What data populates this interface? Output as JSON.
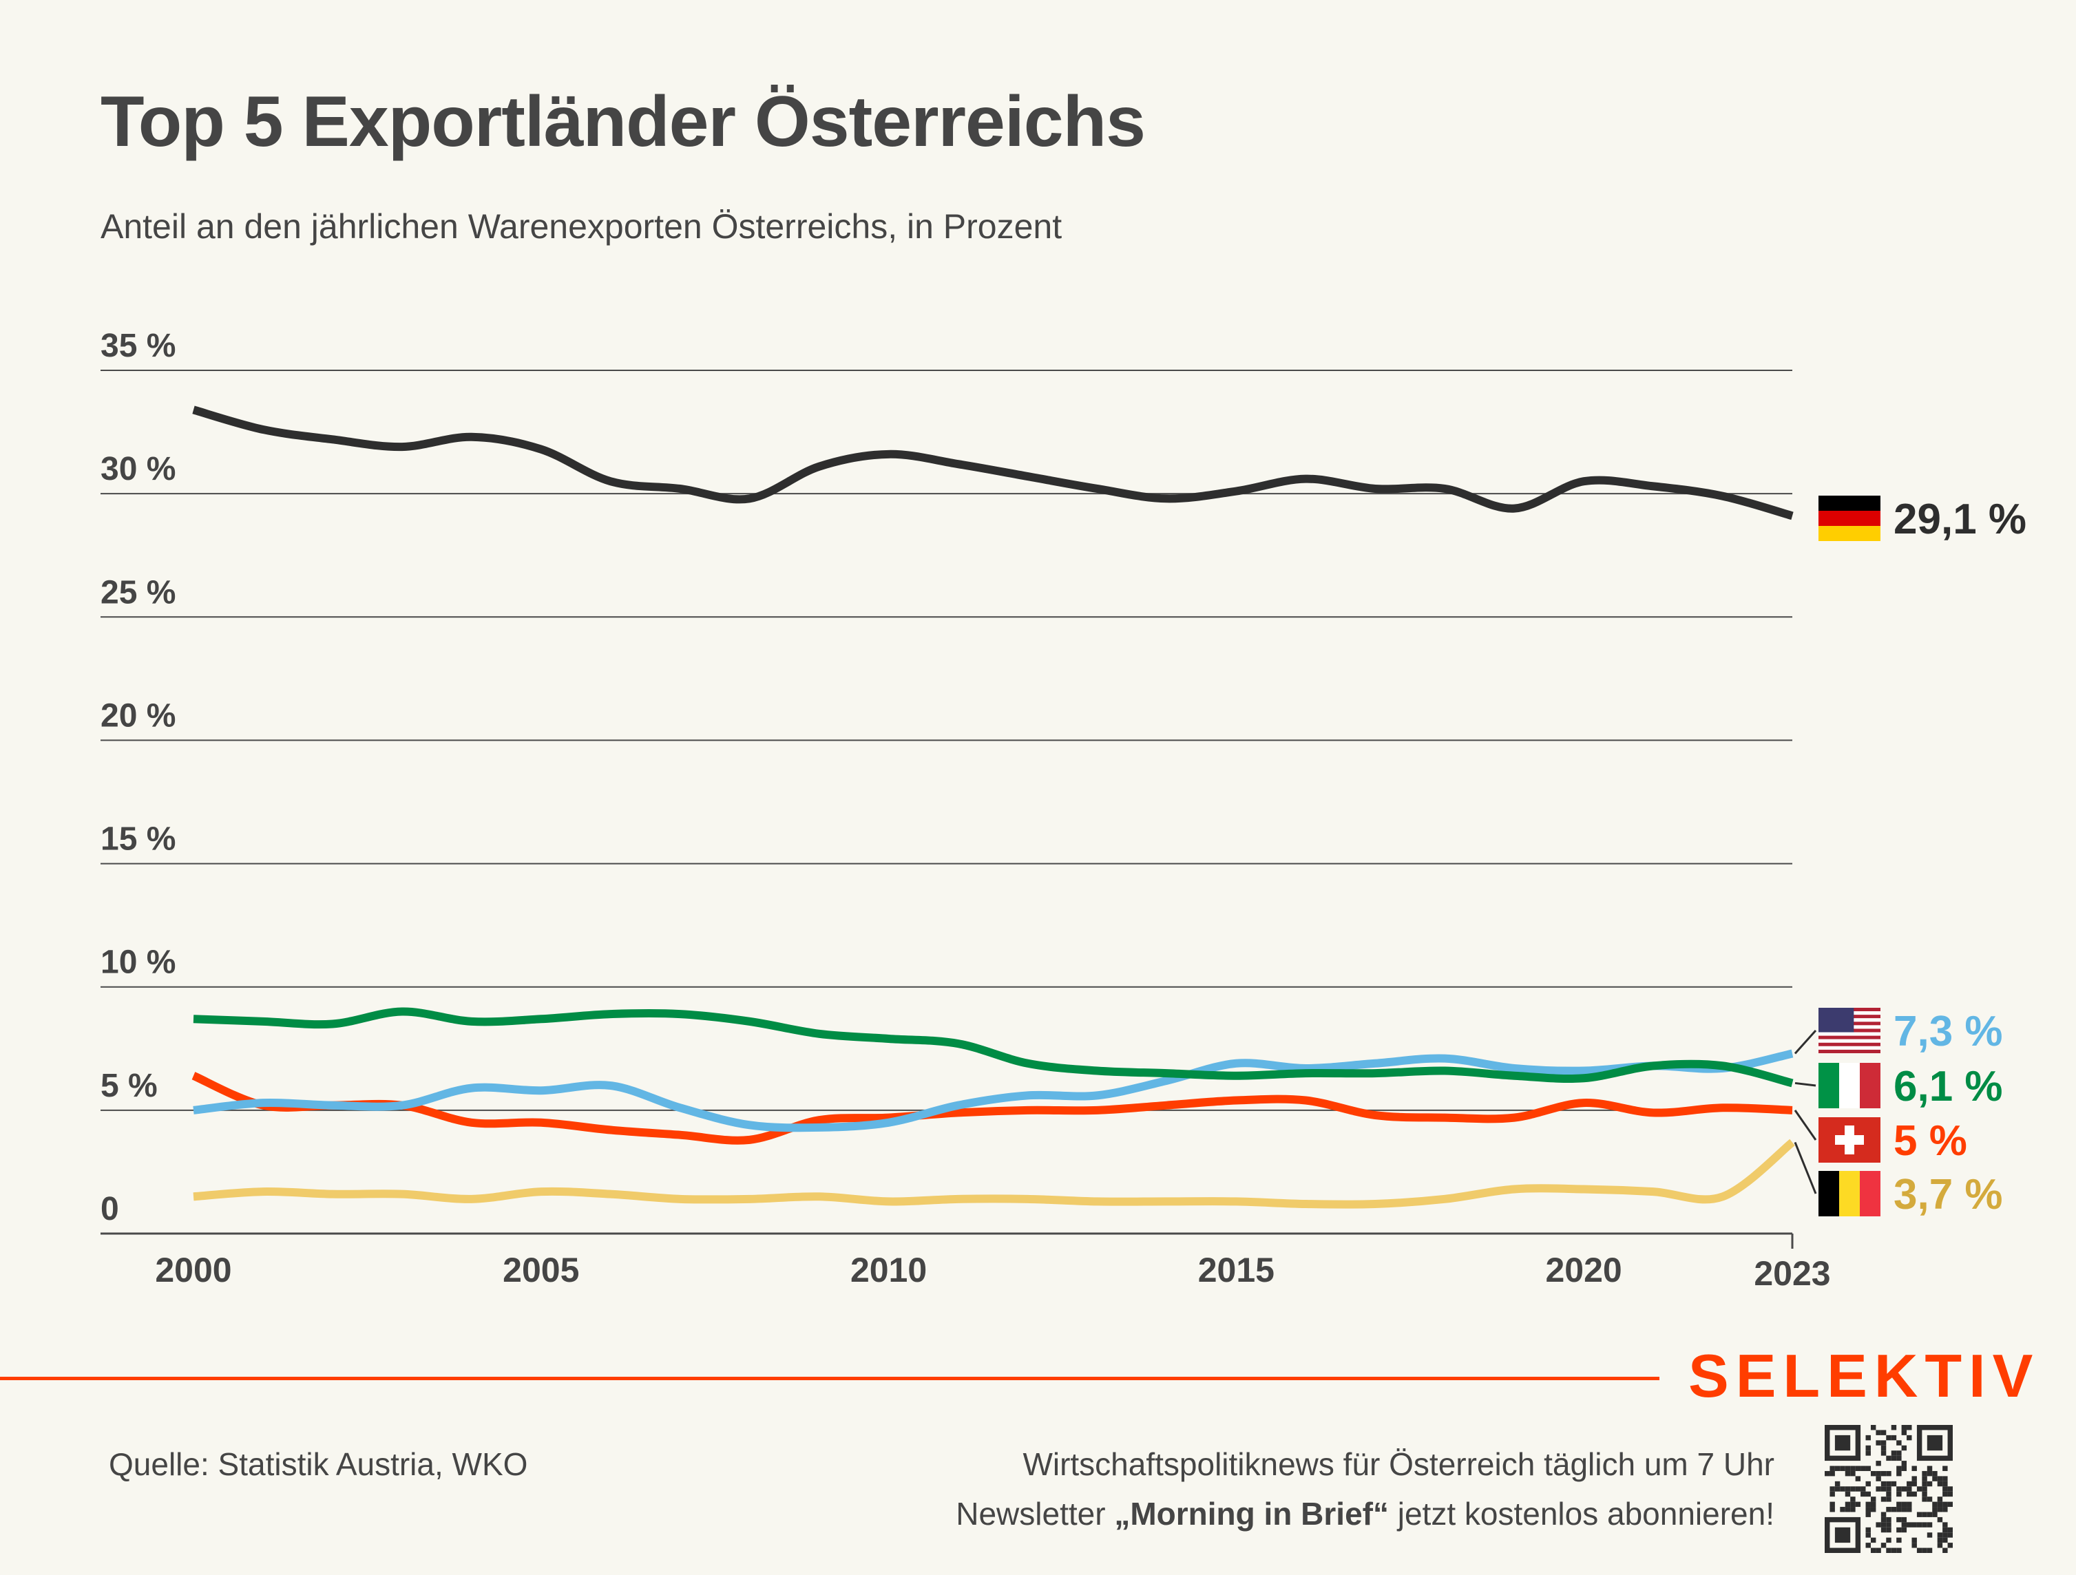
{
  "header": {
    "title": "Top 5 Exportländer Österreichs",
    "subtitle": "Anteil an den jährlichen Warenexporten Österreichs, in Prozent"
  },
  "chart_data": {
    "type": "line",
    "title": "Top 5 Exportländer Österreichs",
    "subtitle": "Anteil an den jährlichen Warenexporten Österreichs, in Prozent",
    "xlabel": "",
    "ylabel": "",
    "x": [
      2000,
      2001,
      2002,
      2003,
      2004,
      2005,
      2006,
      2007,
      2008,
      2009,
      2010,
      2011,
      2012,
      2013,
      2014,
      2015,
      2016,
      2017,
      2018,
      2019,
      2020,
      2021,
      2022,
      2023
    ],
    "x_ticks": [
      "2000",
      "2005",
      "2010",
      "2015",
      "2020",
      "2023"
    ],
    "x_tick_values": [
      2000,
      2005,
      2010,
      2015,
      2020,
      2023
    ],
    "y_ticks": [
      "0",
      "5 %",
      "10 %",
      "15 %",
      "20 %",
      "25 %",
      "30 %",
      "35 %"
    ],
    "y_tick_values": [
      0,
      5,
      10,
      15,
      20,
      25,
      30,
      35
    ],
    "ylim": [
      0,
      35
    ],
    "xlim": [
      2000,
      2023
    ],
    "grid": true,
    "legend": "end-labels-right",
    "series": [
      {
        "name": "Deutschland",
        "flag": "flag-germany",
        "color": "#2e2e2e",
        "end_label": "29,1 %",
        "values": [
          33.4,
          32.6,
          32.2,
          31.9,
          32.3,
          31.8,
          30.5,
          30.2,
          29.8,
          31.1,
          31.6,
          31.2,
          30.7,
          30.2,
          29.8,
          30.1,
          30.6,
          30.2,
          30.2,
          29.4,
          30.5,
          30.3,
          29.9,
          29.1
        ]
      },
      {
        "name": "USA",
        "flag": "flag-usa",
        "color": "#62b6e4",
        "end_label": "7,3 %",
        "values": [
          5.0,
          5.3,
          5.2,
          5.2,
          5.9,
          5.8,
          6.0,
          5.1,
          4.4,
          4.3,
          4.5,
          5.2,
          5.6,
          5.6,
          6.2,
          6.9,
          6.7,
          6.9,
          7.1,
          6.7,
          6.6,
          6.8,
          6.7,
          7.3
        ]
      },
      {
        "name": "Italien",
        "flag": "flag-italy",
        "color": "#008c45",
        "end_label": "6,1 %",
        "values": [
          8.7,
          8.6,
          8.5,
          9.0,
          8.6,
          8.7,
          8.9,
          8.9,
          8.6,
          8.1,
          7.9,
          7.7,
          6.9,
          6.6,
          6.5,
          6.4,
          6.5,
          6.5,
          6.6,
          6.4,
          6.3,
          6.8,
          6.8,
          6.1
        ]
      },
      {
        "name": "Schweiz",
        "flag": "flag-switzerland",
        "color": "#ff3d00",
        "end_label": "5 %",
        "values": [
          6.4,
          5.2,
          5.2,
          5.2,
          4.5,
          4.5,
          4.2,
          4.0,
          3.8,
          4.6,
          4.7,
          4.9,
          5.0,
          5.0,
          5.2,
          5.4,
          5.4,
          4.8,
          4.7,
          4.7,
          5.3,
          4.9,
          5.1,
          5.0
        ]
      },
      {
        "name": "Belgien",
        "flag": "flag-belgium",
        "color": "#f0cb6a",
        "label_color": "#d4aa3c",
        "end_label": "3,7 %",
        "values": [
          1.5,
          1.7,
          1.6,
          1.6,
          1.4,
          1.7,
          1.6,
          1.4,
          1.4,
          1.5,
          1.3,
          1.4,
          1.4,
          1.3,
          1.3,
          1.3,
          1.2,
          1.2,
          1.4,
          1.8,
          1.8,
          1.7,
          1.5,
          3.7
        ]
      }
    ]
  },
  "footer": {
    "brand": "SELEKTIV",
    "brand_color": "#ff3d00",
    "source": "Quelle: Statistik Austria, WKO",
    "promo_line1": "Wirtschaftspolitiknews für Österreich täglich um 7 Uhr",
    "promo_line2_pre": "Newsletter ",
    "promo_line2_bold": "„Morning in Brief“",
    "promo_line2_post": " jetzt kostenlos abonnieren!",
    "qr_icon": "qr-code-icon"
  }
}
